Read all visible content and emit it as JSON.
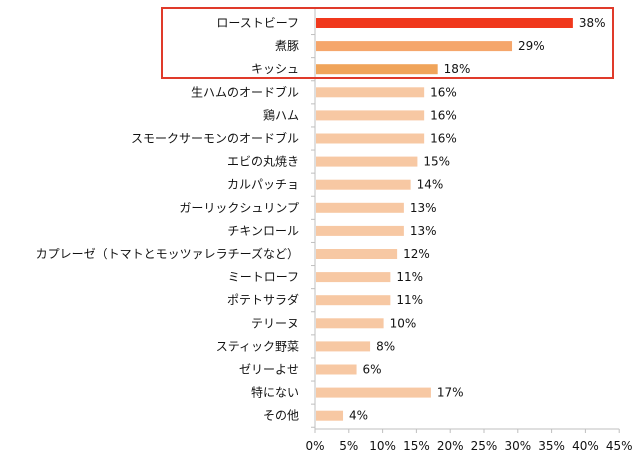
{
  "chart_data": {
    "type": "bar",
    "orientation": "horizontal",
    "categories": [
      "ローストビーフ",
      "煮豚",
      "キッシュ",
      "生ハムのオードブル",
      "鶏ハム",
      "スモークサーモンのオードブル",
      "エビの丸焼き",
      "カルパッチョ",
      "ガーリックシュリンプ",
      "チキンロール",
      "カプレーゼ（トマトとモッツァレラチーズなど）",
      "ミートローフ",
      "ポテトサラダ",
      "テリーヌ",
      "スティック野菜",
      "ゼリーよせ",
      "特にない",
      "その他"
    ],
    "values": [
      38,
      29,
      18,
      16,
      16,
      16,
      15,
      14,
      13,
      13,
      12,
      11,
      11,
      10,
      8,
      6,
      17,
      4
    ],
    "data_labels": [
      "38%",
      "29%",
      "18%",
      "16%",
      "16%",
      "16%",
      "15%",
      "14%",
      "13%",
      "13%",
      "12%",
      "11%",
      "11%",
      "10%",
      "8%",
      "6%",
      "17%",
      "4%"
    ],
    "xlim": [
      0,
      45
    ],
    "x_ticks": [
      "0%",
      "5%",
      "10%",
      "15%",
      "20%",
      "25%",
      "30%",
      "35%",
      "40%",
      "45%"
    ],
    "title": "",
    "xlabel": "",
    "ylabel": "",
    "grid": false,
    "highlight": "top-3",
    "colors": {
      "first": "#f0381c",
      "second": "#f5a66b",
      "third": "#f0a45a",
      "rest": "#f7c8a3",
      "highlight_box": "#e03a2a",
      "axis": "#bfbfbf"
    }
  }
}
